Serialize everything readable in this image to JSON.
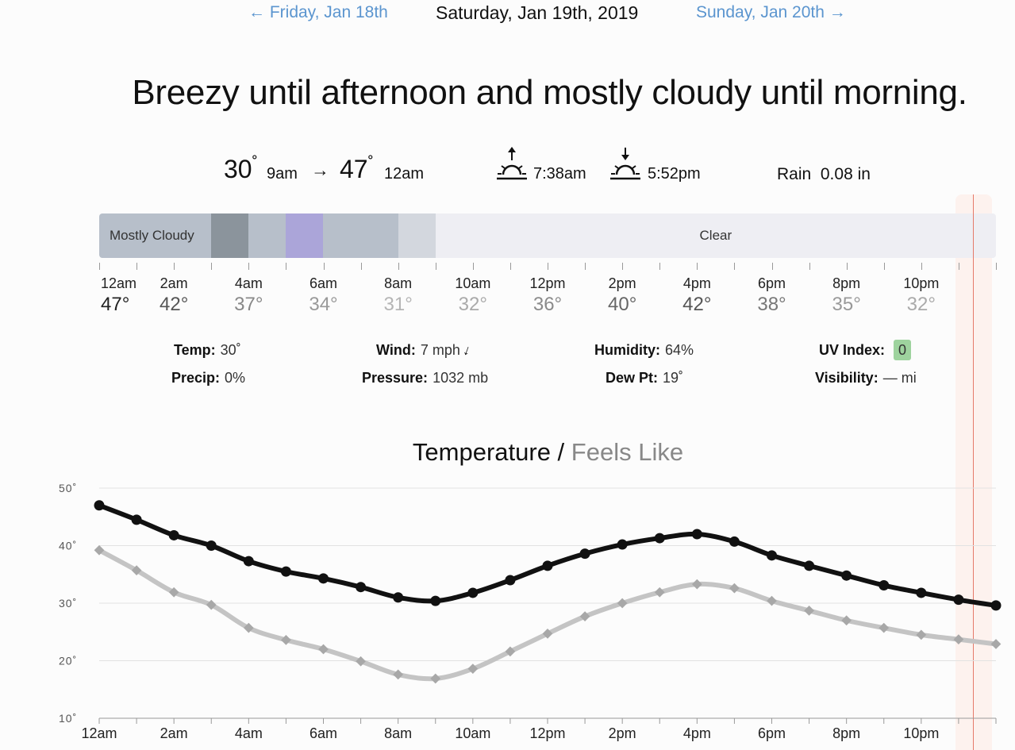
{
  "nav": {
    "prev": "← Friday, Jan 18th",
    "current": "Saturday, Jan 19th, 2019",
    "next": "Sunday, Jan 20th →"
  },
  "headline": "Breezy until afternoon and mostly cloudy until morning.",
  "summary": {
    "low_temp": "30",
    "low_time": "9am",
    "arrow": "→",
    "high_temp": "47",
    "high_time": "12am",
    "sunrise": "7:38am",
    "sunset": "5:52pm",
    "rain_label": "Rain",
    "rain_value": "0.08 in"
  },
  "timeline": {
    "segments": [
      {
        "label": "Mostly Cloudy",
        "color": "#b7bfca",
        "hours": 3
      },
      {
        "label": "",
        "color": "#8b949c",
        "hours": 1
      },
      {
        "label": "",
        "color": "#b7bfca",
        "hours": 1
      },
      {
        "label": "",
        "color": "#aba5d9",
        "hours": 1
      },
      {
        "label": "",
        "color": "#b7bfca",
        "hours": 2
      },
      {
        "label": "",
        "color": "#d3d7de",
        "hours": 1
      },
      {
        "label": "Clear",
        "color": "#eeeef3",
        "hours": 15
      }
    ],
    "hours": [
      {
        "label": "12am",
        "temp": "47°",
        "color": "#222"
      },
      {
        "label": "2am",
        "temp": "42°",
        "color": "#555"
      },
      {
        "label": "4am",
        "temp": "37°",
        "color": "#888"
      },
      {
        "label": "6am",
        "temp": "34°",
        "color": "#999"
      },
      {
        "label": "8am",
        "temp": "31°",
        "color": "#b5b5b5"
      },
      {
        "label": "10am",
        "temp": "32°",
        "color": "#aaa"
      },
      {
        "label": "12pm",
        "temp": "36°",
        "color": "#8a8a8a"
      },
      {
        "label": "2pm",
        "temp": "40°",
        "color": "#666"
      },
      {
        "label": "4pm",
        "temp": "42°",
        "color": "#555"
      },
      {
        "label": "6pm",
        "temp": "38°",
        "color": "#777"
      },
      {
        "label": "8pm",
        "temp": "35°",
        "color": "#999"
      },
      {
        "label": "10pm",
        "temp": "32°",
        "color": "#aaa"
      }
    ]
  },
  "details": {
    "temp_label": "Temp:",
    "temp_value": "30˚",
    "precip_label": "Precip:",
    "precip_value": "0%",
    "wind_label": "Wind:",
    "wind_value": "7 mph",
    "pressure_label": "Pressure:",
    "pressure_value": "1032 mb",
    "humidity_label": "Humidity:",
    "humidity_value": "64%",
    "dewpt_label": "Dew Pt:",
    "dewpt_value": "19˚",
    "uv_label": "UV Index:",
    "uv_value": "0",
    "visibility_label": "Visibility:",
    "visibility_value": "— mi"
  },
  "chart_title": {
    "main": "Temperature",
    "sep": " / ",
    "secondary": "Feels Like"
  },
  "colors": {
    "nav_link": "#5b95cf",
    "temp_line": "#111111",
    "feels_line": "#c4c4c4",
    "now_marker": "#e57a6a"
  },
  "chart_data": {
    "type": "line",
    "title": "Temperature / Feels Like",
    "x": [
      "12am",
      "1am",
      "2am",
      "3am",
      "4am",
      "5am",
      "6am",
      "7am",
      "8am",
      "9am",
      "10am",
      "11am",
      "12pm",
      "1pm",
      "2pm",
      "3pm",
      "4pm",
      "5pm",
      "6pm",
      "7pm",
      "8pm",
      "9pm",
      "10pm",
      "11pm",
      "12am"
    ],
    "x_tick_labels": [
      "12am",
      "2am",
      "4am",
      "6am",
      "8am",
      "10am",
      "12pm",
      "2pm",
      "4pm",
      "6pm",
      "8pm",
      "10pm"
    ],
    "y_ticks": [
      "50˚",
      "40˚",
      "30˚",
      "20˚",
      "10˚"
    ],
    "ylim": [
      10,
      50
    ],
    "grid": true,
    "series": [
      {
        "name": "Temperature",
        "values": [
          47,
          44.5,
          41.8,
          40,
          37.3,
          35.5,
          34.3,
          32.8,
          31,
          30.4,
          31.8,
          34,
          36.5,
          38.6,
          40.2,
          41.3,
          42,
          40.7,
          38.3,
          36.5,
          34.8,
          33.1,
          31.8,
          30.6,
          29.6
        ]
      },
      {
        "name": "Feels Like",
        "values": [
          39.2,
          35.7,
          31.9,
          29.7,
          25.7,
          23.6,
          22,
          19.9,
          17.6,
          16.9,
          18.6,
          21.6,
          24.7,
          27.7,
          30,
          31.9,
          33.3,
          32.6,
          30.4,
          28.7,
          27,
          25.7,
          24.5,
          23.7,
          22.9
        ]
      }
    ]
  }
}
